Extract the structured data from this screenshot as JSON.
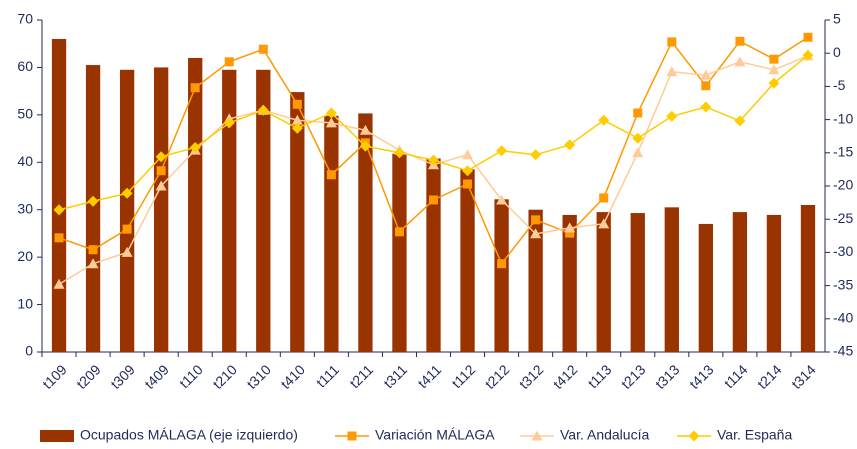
{
  "chart_data": {
    "type": "bar_line",
    "categories": [
      "t109",
      "t209",
      "t309",
      "t409",
      "t110",
      "t210",
      "t310",
      "t410",
      "t111",
      "t211",
      "t311",
      "t411",
      "t112",
      "t212",
      "t312",
      "t412",
      "t113",
      "t213",
      "t313",
      "t413",
      "t114",
      "t214",
      "t314"
    ],
    "series": [
      {
        "name": "Ocupados MÁLAGA (eje izquierdo)",
        "color": "#993300",
        "kind": "bar",
        "values": [
          66,
          60.5,
          59.5,
          60,
          62,
          59.5,
          59.5,
          54.8,
          49.8,
          50.3,
          41.8,
          40.8,
          38.5,
          32.2,
          30,
          28.9,
          29.5,
          29.3,
          30.5,
          27,
          29.5,
          28.9,
          31
        ]
      },
      {
        "name": "Variación MÁLAGA",
        "color": "#ff9900",
        "kind": "line",
        "marker": "square",
        "axis": "y2",
        "values": [
          -27.8,
          -29.6,
          -26.5,
          -17.7,
          -5.2,
          -1.3,
          0.6,
          -7.7,
          -18.3,
          -13.5,
          -26.9,
          -22.1,
          -19.7,
          -31.7,
          -25.1,
          -27.1,
          -21.8,
          -9.0,
          1.7,
          -4.9,
          1.8,
          -0.9,
          2.4
        ]
      },
      {
        "name": "Var. Andalucía",
        "color": "#ffcc99",
        "kind": "line",
        "marker": "triangle",
        "axis": "y2",
        "values": [
          -34.8,
          -31.7,
          -30.0,
          -20.0,
          -14.6,
          -9.9,
          -8.6,
          -10.1,
          -10.5,
          -11.6,
          -14.6,
          -16.8,
          -15.3,
          -22.1,
          -27.2,
          -26.3,
          -25.7,
          -15.0,
          -2.8,
          -3.3,
          -1.3,
          -2.5,
          -0.4
        ]
      },
      {
        "name": "Var. España",
        "color": "#ffcc00",
        "kind": "line",
        "marker": "diamond",
        "axis": "y2",
        "values": [
          -23.6,
          -22.3,
          -21.1,
          -15.6,
          -14.2,
          -10.5,
          -8.6,
          -11.3,
          -9.0,
          -14.0,
          -15.0,
          -16.1,
          -17.7,
          -14.7,
          -15.3,
          -13.8,
          -10.1,
          -12.8,
          -9.5,
          -8.1,
          -10.2,
          -4.5,
          -0.3
        ]
      }
    ],
    "ylim": [
      0,
      70
    ],
    "yticks": [
      0,
      10,
      20,
      30,
      40,
      50,
      60,
      70
    ],
    "y2lim": [
      -45,
      5
    ],
    "y2ticks": [
      -45,
      -40,
      -35,
      -30,
      -25,
      -20,
      -15,
      -10,
      -5,
      0,
      5
    ],
    "legend": "bottom"
  }
}
